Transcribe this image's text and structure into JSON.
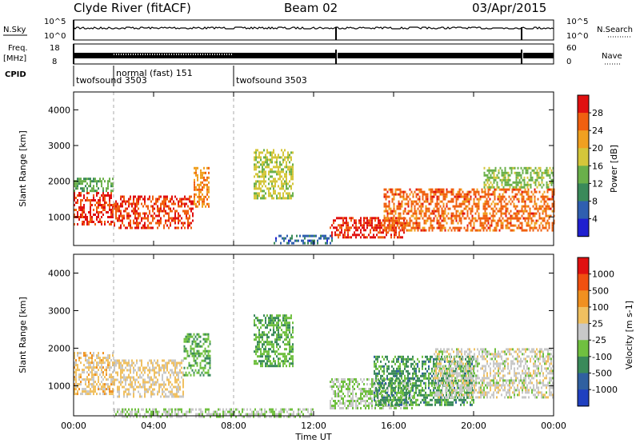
{
  "header": {
    "station": "Clyde River (fitACF)",
    "beam": "Beam 02",
    "date": "03/Apr/2015"
  },
  "strips": {
    "nsky_label": "N.Sky",
    "nsky_ticks": [
      "10^5",
      "10^0"
    ],
    "nsearch_label": "N.Search",
    "nsearch_ticks": [
      "10^5",
      "10^0"
    ],
    "freq_label": "Freq.",
    "freq_unit": "[MHz]",
    "freq_ticks": [
      "18",
      "8"
    ],
    "nave_label": "Nave",
    "nave_ticks": [
      "60",
      "0"
    ],
    "cpid_label": "CPID"
  },
  "cpid_segments": [
    {
      "label": "twofsound 3503",
      "start_hour": 0.0,
      "end_hour": 2.0
    },
    {
      "label": "normal (fast) 151",
      "start_hour": 2.0,
      "end_hour": 8.0
    },
    {
      "label": "twofsound 3503",
      "start_hour": 8.0,
      "end_hour": 24.0
    }
  ],
  "chart_data": [
    {
      "type": "heatmap",
      "title": "",
      "xlabel": "Time UT",
      "ylabel": "Slant Range [km]",
      "xlim": [
        0,
        24
      ],
      "ylim": [
        200,
        4500
      ],
      "x_ticks": [
        "00:00",
        "04:00",
        "08:00",
        "12:00",
        "16:00",
        "20:00",
        "00:00"
      ],
      "y_ticks": [
        "1000",
        "2000",
        "3000",
        "4000"
      ],
      "colorbar": {
        "label": "Power [dB]",
        "ticks": [
          "4",
          "8",
          "12",
          "16",
          "20",
          "24",
          "28"
        ],
        "range": [
          0,
          30
        ],
        "colors": [
          "#1f1fd0",
          "#2f5fb0",
          "#3a8a5a",
          "#6ab04a",
          "#d4c63a",
          "#f0a020",
          "#f06010",
          "#e01010"
        ]
      },
      "regions": [
        {
          "t0": 0.0,
          "t1": 2.0,
          "r0": 800,
          "r1": 1700,
          "value": 27
        },
        {
          "t0": 2.0,
          "t1": 6.0,
          "r0": 700,
          "r1": 1600,
          "value": 26
        },
        {
          "t0": 6.0,
          "t1": 6.8,
          "r0": 1300,
          "r1": 2400,
          "value": 22
        },
        {
          "t0": 0.0,
          "t1": 2.0,
          "r0": 1700,
          "r1": 2100,
          "value": 12
        },
        {
          "t0": 12.8,
          "t1": 16.5,
          "r0": 400,
          "r1": 1000,
          "value": 27
        },
        {
          "t0": 15.5,
          "t1": 24.0,
          "r0": 600,
          "r1": 1800,
          "value": 24
        },
        {
          "t0": 20.5,
          "t1": 24.0,
          "r0": 1800,
          "r1": 2400,
          "value": 14
        },
        {
          "t0": 9.0,
          "t1": 11.0,
          "r0": 1500,
          "r1": 2900,
          "value": 16
        },
        {
          "t0": 10.0,
          "t1": 13.0,
          "r0": 250,
          "r1": 500,
          "value": 6
        }
      ]
    },
    {
      "type": "heatmap",
      "title": "",
      "xlabel": "Time UT",
      "ylabel": "Slant Range [km]",
      "xlim": [
        0,
        24
      ],
      "ylim": [
        200,
        4500
      ],
      "x_ticks": [
        "00:00",
        "04:00",
        "08:00",
        "12:00",
        "16:00",
        "20:00",
        "00:00"
      ],
      "y_ticks": [
        "1000",
        "2000",
        "3000",
        "4000"
      ],
      "colorbar": {
        "label": "Velocity [m s-1]",
        "ticks": [
          "1000",
          "500",
          "100",
          "25",
          "-25",
          "-100",
          "-500",
          "-1000"
        ],
        "range": [
          -1000,
          1000
        ],
        "colors": [
          "#2040c0",
          "#3060a0",
          "#3a8a5a",
          "#70c040",
          "#c8c8c8",
          "#f0c060",
          "#f09020",
          "#f05010",
          "#e01010"
        ]
      },
      "regions": [
        {
          "t0": 0.0,
          "t1": 2.0,
          "r0": 800,
          "r1": 1900,
          "value": 200
        },
        {
          "t0": 2.0,
          "t1": 5.5,
          "r0": 700,
          "r1": 1700,
          "value": 150
        },
        {
          "t0": 5.5,
          "t1": 6.8,
          "r0": 1300,
          "r1": 2400,
          "value": -300
        },
        {
          "t0": 2.0,
          "t1": 12.0,
          "r0": 200,
          "r1": 400,
          "value": -80
        },
        {
          "t0": 12.8,
          "t1": 17.0,
          "r0": 400,
          "r1": 1200,
          "value": -100
        },
        {
          "t0": 15.0,
          "t1": 20.0,
          "r0": 500,
          "r1": 1800,
          "value": -400
        },
        {
          "t0": 18.0,
          "t1": 24.0,
          "r0": 700,
          "r1": 2000,
          "value": 10
        },
        {
          "t0": 9.0,
          "t1": 11.0,
          "r0": 1500,
          "r1": 2900,
          "value": -300
        }
      ]
    }
  ]
}
